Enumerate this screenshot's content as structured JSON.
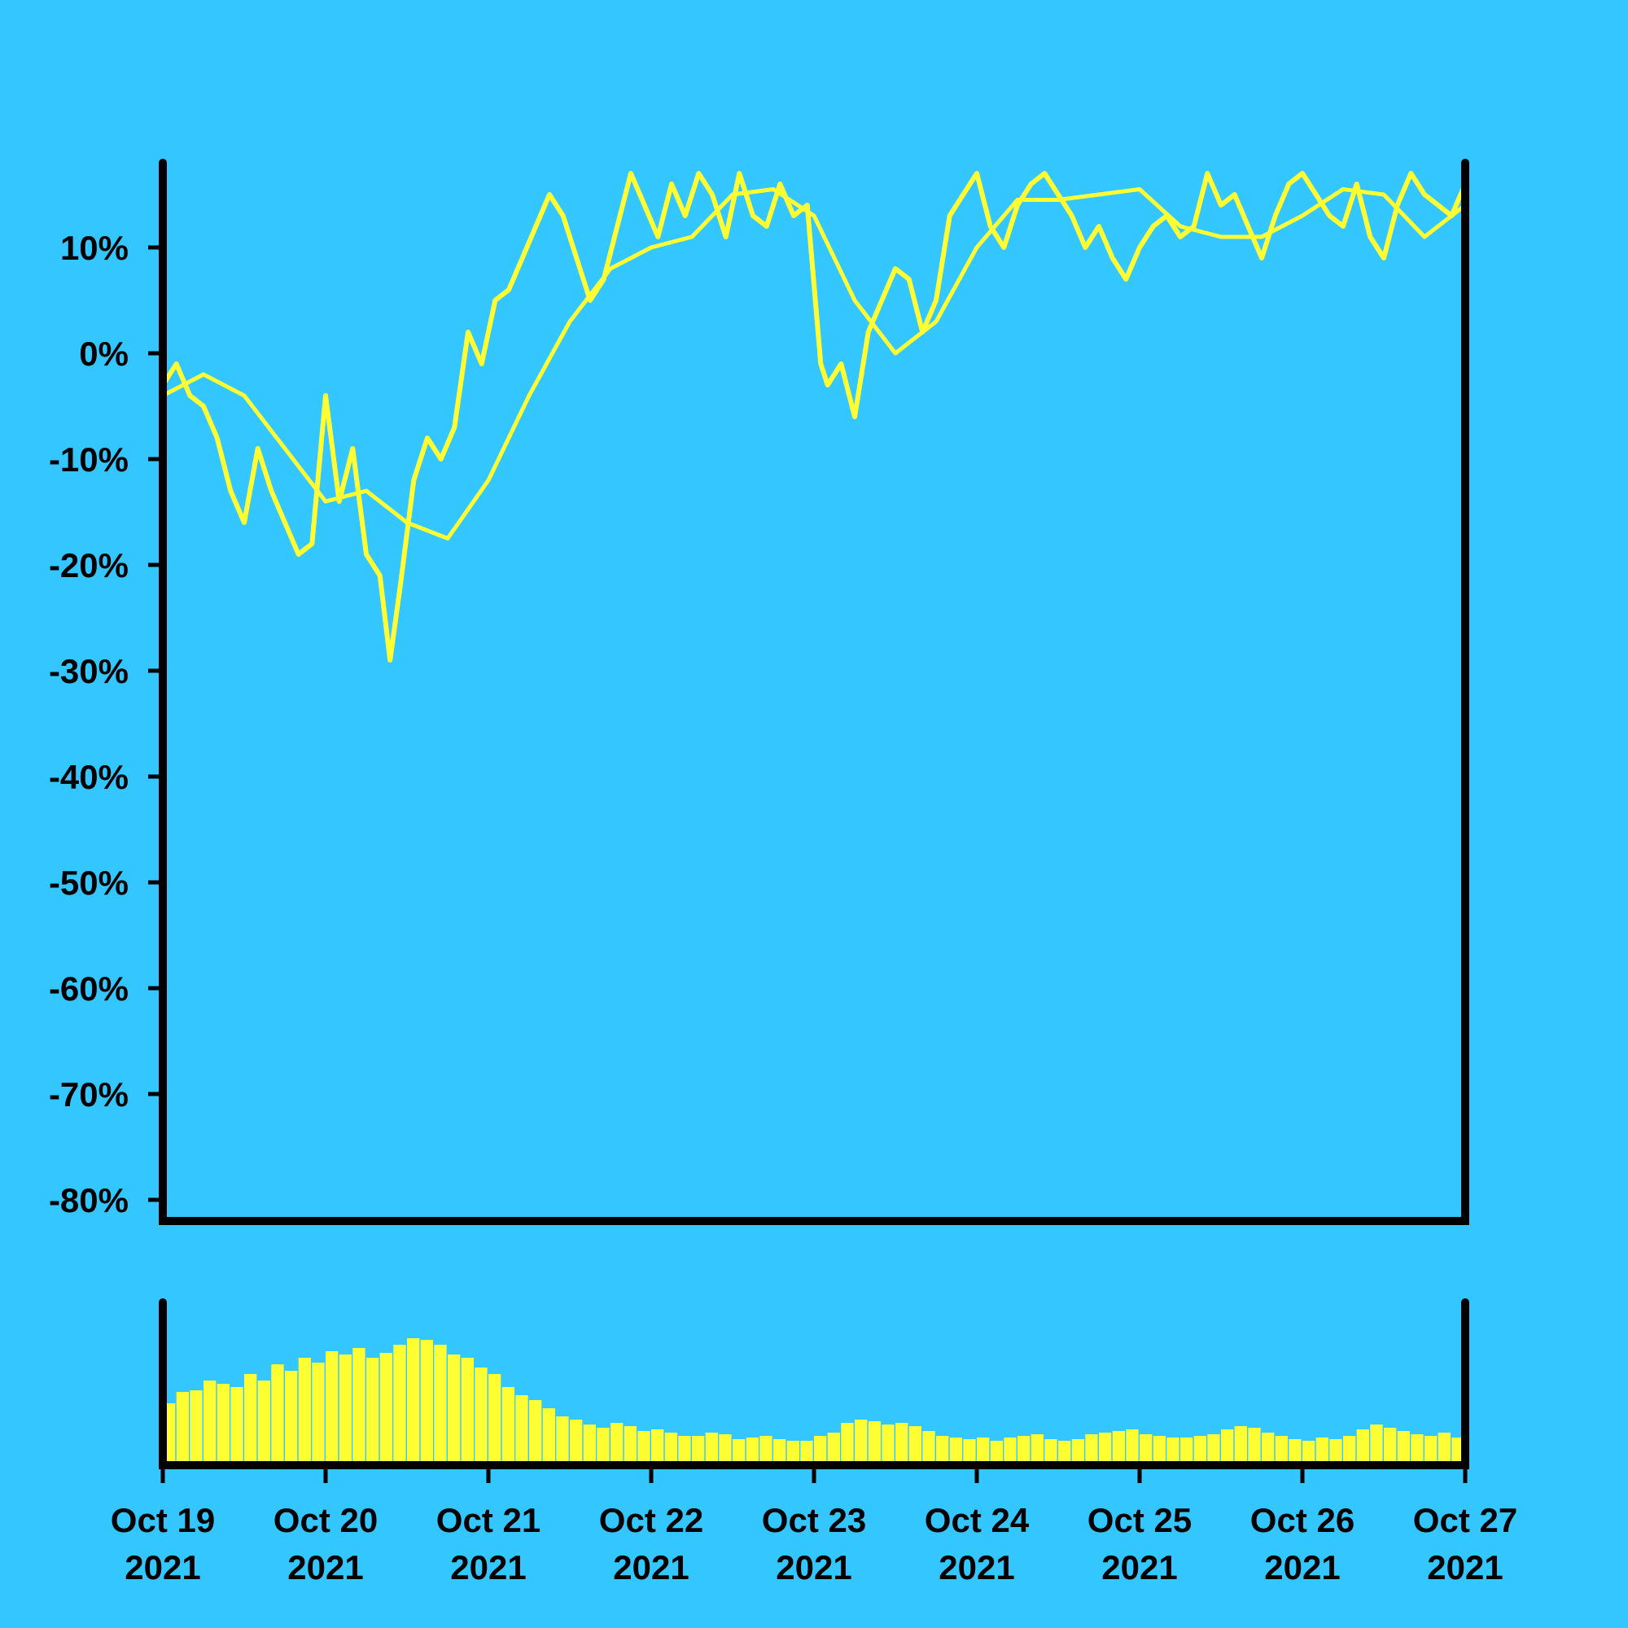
{
  "colors": {
    "background": "#33c6ff",
    "series": "#ffff33",
    "axes": "#000000"
  },
  "chart_data": [
    {
      "type": "line",
      "title": "",
      "xlabel": "",
      "ylabel": "",
      "y_unit": "%",
      "ylim": [
        -82,
        18
      ],
      "xlim": [
        "2021-10-19",
        "2021-10-27"
      ],
      "grid": false,
      "legend": "none",
      "y_ticks": [
        {
          "value": 10,
          "label": "10%"
        },
        {
          "value": 0,
          "label": "0%"
        },
        {
          "value": -10,
          "label": "-10%"
        },
        {
          "value": -20,
          "label": "-20%"
        },
        {
          "value": -30,
          "label": "-30%"
        },
        {
          "value": -40,
          "label": "-40%"
        },
        {
          "value": -50,
          "label": "-50%"
        },
        {
          "value": -60,
          "label": "-60%"
        },
        {
          "value": -70,
          "label": "-70%"
        },
        {
          "value": -80,
          "label": "-80%"
        }
      ],
      "x_ticks": [
        {
          "value": "2021-10-19",
          "label_line1": "Oct 19",
          "label_line2": "2021"
        },
        {
          "value": "2021-10-20",
          "label_line1": "Oct 20",
          "label_line2": "2021"
        },
        {
          "value": "2021-10-21",
          "label_line1": "Oct 21",
          "label_line2": "2021"
        },
        {
          "value": "2021-10-22",
          "label_line1": "Oct 22",
          "label_line2": "2021"
        },
        {
          "value": "2021-10-23",
          "label_line1": "Oct 23",
          "label_line2": "2021"
        },
        {
          "value": "2021-10-24",
          "label_line1": "Oct 24",
          "label_line2": "2021"
        },
        {
          "value": "2021-10-25",
          "label_line1": "Oct 25",
          "label_line2": "2021"
        },
        {
          "value": "2021-10-26",
          "label_line1": "Oct 26",
          "label_line2": "2021"
        },
        {
          "value": "2021-10-27",
          "label_line1": "Oct 27",
          "label_line2": "2021"
        }
      ],
      "series": [
        {
          "x": [
            "2021-10-19 00:00",
            "2021-10-19 02:00",
            "2021-10-19 04:00",
            "2021-10-19 06:00",
            "2021-10-19 08:00",
            "2021-10-19 10:00",
            "2021-10-19 12:00",
            "2021-10-19 14:00",
            "2021-10-19 16:00",
            "2021-10-19 18:00",
            "2021-10-19 20:00",
            "2021-10-19 22:00",
            "2021-10-20 00:00",
            "2021-10-20 02:00",
            "2021-10-20 04:00",
            "2021-10-20 06:00",
            "2021-10-20 08:00",
            "2021-10-20 09:30",
            "2021-10-20 11:00",
            "2021-10-20 13:00",
            "2021-10-20 15:00",
            "2021-10-20 17:00",
            "2021-10-20 19:00",
            "2021-10-20 21:00",
            "2021-10-20 23:00",
            "2021-10-21 01:00",
            "2021-10-21 03:00",
            "2021-10-21 05:00",
            "2021-10-21 07:00",
            "2021-10-21 09:00",
            "2021-10-21 11:00",
            "2021-10-21 13:00",
            "2021-10-21 15:00",
            "2021-10-21 17:00",
            "2021-10-21 19:00",
            "2021-10-21 21:00",
            "2021-10-21 23:00",
            "2021-10-22 01:00",
            "2021-10-22 03:00",
            "2021-10-22 05:00",
            "2021-10-22 07:00",
            "2021-10-22 09:00",
            "2021-10-22 11:00",
            "2021-10-22 13:00",
            "2021-10-22 15:00",
            "2021-10-22 17:00",
            "2021-10-22 19:00",
            "2021-10-22 21:00",
            "2021-10-22 23:00",
            "2021-10-23 01:00",
            "2021-10-23 02:00",
            "2021-10-23 04:00",
            "2021-10-23 06:00",
            "2021-10-23 08:00",
            "2021-10-23 10:00",
            "2021-10-23 12:00",
            "2021-10-23 14:00",
            "2021-10-23 16:00",
            "2021-10-23 18:00",
            "2021-10-23 20:00",
            "2021-10-23 22:00",
            "2021-10-24 00:00",
            "2021-10-24 02:00",
            "2021-10-24 04:00",
            "2021-10-24 06:00",
            "2021-10-24 08:00",
            "2021-10-24 10:00",
            "2021-10-24 12:00",
            "2021-10-24 14:00",
            "2021-10-24 16:00",
            "2021-10-24 18:00",
            "2021-10-24 20:00",
            "2021-10-24 22:00",
            "2021-10-25 00:00",
            "2021-10-25 02:00",
            "2021-10-25 04:00",
            "2021-10-25 06:00",
            "2021-10-25 08:00",
            "2021-10-25 10:00",
            "2021-10-25 12:00",
            "2021-10-25 14:00",
            "2021-10-25 16:00",
            "2021-10-25 18:00",
            "2021-10-25 20:00",
            "2021-10-25 22:00",
            "2021-10-26 00:00",
            "2021-10-26 02:00",
            "2021-10-26 04:00",
            "2021-10-26 06:00",
            "2021-10-26 08:00",
            "2021-10-26 10:00",
            "2021-10-26 12:00",
            "2021-10-26 14:00",
            "2021-10-26 16:00",
            "2021-10-26 18:00",
            "2021-10-26 20:00",
            "2021-10-26 22:00",
            "2021-10-27 00:00"
          ],
          "values": [
            -3,
            -1,
            -4,
            -5,
            -8,
            -13,
            -16,
            -9,
            -13,
            -16,
            -19,
            -18,
            -4,
            -14,
            -9,
            -19,
            -21,
            -29,
            -22,
            -12,
            -8,
            -10,
            -7,
            2,
            -1,
            5,
            6,
            9,
            12,
            15,
            13,
            9,
            5,
            7,
            12,
            17,
            14,
            11,
            16,
            13,
            17,
            15,
            11,
            17,
            13,
            12,
            16,
            13,
            14,
            -1,
            -3,
            -1,
            -6,
            2,
            5,
            8,
            7,
            2,
            5,
            13,
            15,
            17,
            12,
            10,
            14,
            16,
            17,
            15,
            13,
            10,
            12,
            9,
            7,
            10,
            12,
            13,
            11,
            12,
            17,
            14,
            15,
            12,
            9,
            13,
            16,
            17,
            15,
            13,
            12,
            16,
            11,
            9,
            14,
            17,
            15,
            14,
            13,
            16
          ]
        },
        {
          "x": [
            "2021-10-19 00:00",
            "2021-10-19 06:00",
            "2021-10-19 12:00",
            "2021-10-19 18:00",
            "2021-10-20 00:00",
            "2021-10-20 06:00",
            "2021-10-20 12:00",
            "2021-10-20 18:00",
            "2021-10-21 00:00",
            "2021-10-21 06:00",
            "2021-10-21 12:00",
            "2021-10-21 18:00",
            "2021-10-22 00:00",
            "2021-10-22 06:00",
            "2021-10-22 12:00",
            "2021-10-22 18:00",
            "2021-10-23 00:00",
            "2021-10-23 06:00",
            "2021-10-23 12:00",
            "2021-10-23 18:00",
            "2021-10-24 00:00",
            "2021-10-24 06:00",
            "2021-10-24 12:00",
            "2021-10-24 18:00",
            "2021-10-25 00:00",
            "2021-10-25 06:00",
            "2021-10-25 12:00",
            "2021-10-25 18:00",
            "2021-10-26 00:00",
            "2021-10-26 06:00",
            "2021-10-26 12:00",
            "2021-10-26 18:00",
            "2021-10-27 00:00"
          ],
          "values": [
            -4,
            -2,
            -4,
            -9,
            -14,
            -13,
            -16,
            -17.5,
            -12,
            -4,
            3,
            8,
            10,
            11,
            15,
            15.5,
            13,
            5,
            0,
            3,
            10,
            14.5,
            14.5,
            15,
            15.5,
            12,
            11,
            11,
            13,
            15.5,
            15,
            11,
            14
          ]
        }
      ]
    },
    {
      "type": "bar",
      "title": "",
      "xlabel": "",
      "ylabel": "",
      "note": "volume-style bars, no y axis labels; values are relative heights 0-1",
      "x_range": [
        "2021-10-19",
        "2021-10-27"
      ],
      "values": [
        0.38,
        0.45,
        0.46,
        0.52,
        0.5,
        0.48,
        0.56,
        0.52,
        0.62,
        0.58,
        0.66,
        0.63,
        0.7,
        0.68,
        0.72,
        0.66,
        0.69,
        0.74,
        0.78,
        0.77,
        0.74,
        0.68,
        0.66,
        0.6,
        0.56,
        0.48,
        0.43,
        0.4,
        0.35,
        0.3,
        0.28,
        0.25,
        0.23,
        0.26,
        0.24,
        0.21,
        0.22,
        0.2,
        0.18,
        0.18,
        0.2,
        0.19,
        0.16,
        0.17,
        0.18,
        0.16,
        0.15,
        0.15,
        0.18,
        0.2,
        0.26,
        0.28,
        0.27,
        0.25,
        0.26,
        0.24,
        0.21,
        0.18,
        0.17,
        0.16,
        0.17,
        0.15,
        0.17,
        0.18,
        0.19,
        0.16,
        0.15,
        0.16,
        0.19,
        0.2,
        0.21,
        0.22,
        0.19,
        0.18,
        0.17,
        0.17,
        0.18,
        0.19,
        0.22,
        0.24,
        0.23,
        0.2,
        0.18,
        0.16,
        0.15,
        0.17,
        0.16,
        0.18,
        0.22,
        0.25,
        0.23,
        0.21,
        0.19,
        0.18,
        0.2,
        0.17
      ]
    }
  ]
}
